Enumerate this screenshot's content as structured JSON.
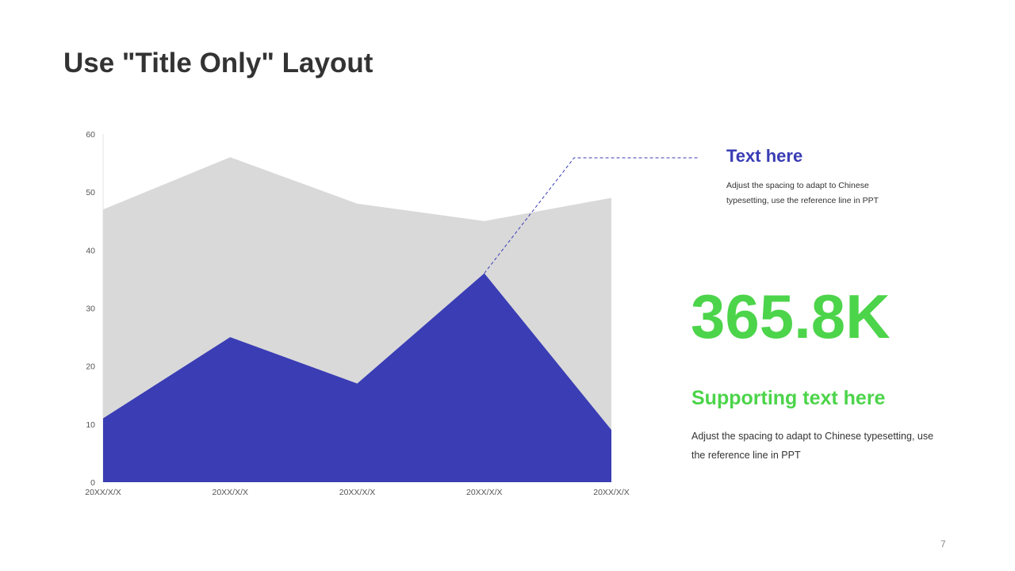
{
  "slide": {
    "title": "Use \"Title Only\" Layout",
    "page_number": "7"
  },
  "callout": {
    "heading": "Text here",
    "body": "Adjust the spacing to adapt to Chinese typesetting, use the reference line in PPT"
  },
  "highlight": {
    "value": "365.8K",
    "heading": "Supporting text here",
    "body": "Adjust the spacing to adapt to Chinese typesetting, use the reference line in PPT"
  },
  "colors": {
    "blue": "#3a3db4",
    "gray": "#d9d9d9",
    "green": "#4cd44a",
    "title": "#333333"
  },
  "chart_data": {
    "type": "area",
    "categories": [
      "20XX/X/X",
      "20XX/X/X",
      "20XX/X/X",
      "20XX/X/X",
      "20XX/X/X"
    ],
    "ylim": [
      0,
      60
    ],
    "yticks": [
      0,
      10,
      20,
      30,
      40,
      50,
      60
    ],
    "series": [
      {
        "values": [
          47,
          56,
          48,
          45,
          49
        ],
        "color": "#d9d9d9"
      },
      {
        "values": [
          11,
          25,
          17,
          36,
          9
        ],
        "color": "#3a3db4"
      }
    ],
    "grid": false,
    "legend": "none",
    "callout_anchor": {
      "category_index": 3,
      "value": 36
    }
  }
}
